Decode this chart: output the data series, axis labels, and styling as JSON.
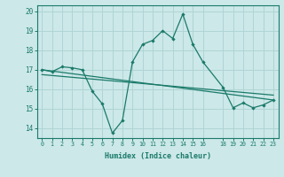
{
  "xlabel": "Humidex (Indice chaleur)",
  "bg_color": "#cce8e8",
  "grid_color": "#b0d4d4",
  "line_color": "#1a7a6a",
  "xlim": [
    -0.5,
    23.5
  ],
  "ylim": [
    13.5,
    20.3
  ],
  "yticks": [
    14,
    15,
    16,
    17,
    18,
    19,
    20
  ],
  "xticks": [
    0,
    1,
    2,
    3,
    4,
    5,
    6,
    7,
    8,
    9,
    10,
    11,
    12,
    13,
    14,
    15,
    16,
    18,
    19,
    20,
    21,
    22,
    23
  ],
  "xtick_labels": [
    "0",
    "1",
    "2",
    "3",
    "4",
    "5",
    "6",
    "7",
    "8",
    "9",
    "10",
    "11",
    "12",
    "13",
    "14",
    "15",
    "16",
    "18",
    "19",
    "20",
    "21",
    "22",
    "23"
  ],
  "series1_x": [
    0,
    1,
    2,
    3,
    4,
    5,
    6,
    7,
    8,
    9,
    10,
    11,
    12,
    13,
    14,
    15,
    16,
    18,
    19,
    20,
    21,
    22,
    23
  ],
  "series1_y": [
    17.0,
    16.9,
    17.15,
    17.1,
    17.0,
    15.9,
    15.25,
    13.75,
    14.4,
    17.4,
    18.3,
    18.5,
    19.0,
    18.6,
    19.85,
    18.3,
    17.4,
    16.1,
    15.05,
    15.3,
    15.05,
    15.2,
    15.45
  ],
  "series2_x": [
    0,
    23
  ],
  "series2_y": [
    17.0,
    15.45
  ],
  "series3_x": [
    0,
    23
  ],
  "series3_y": [
    16.75,
    15.7
  ]
}
